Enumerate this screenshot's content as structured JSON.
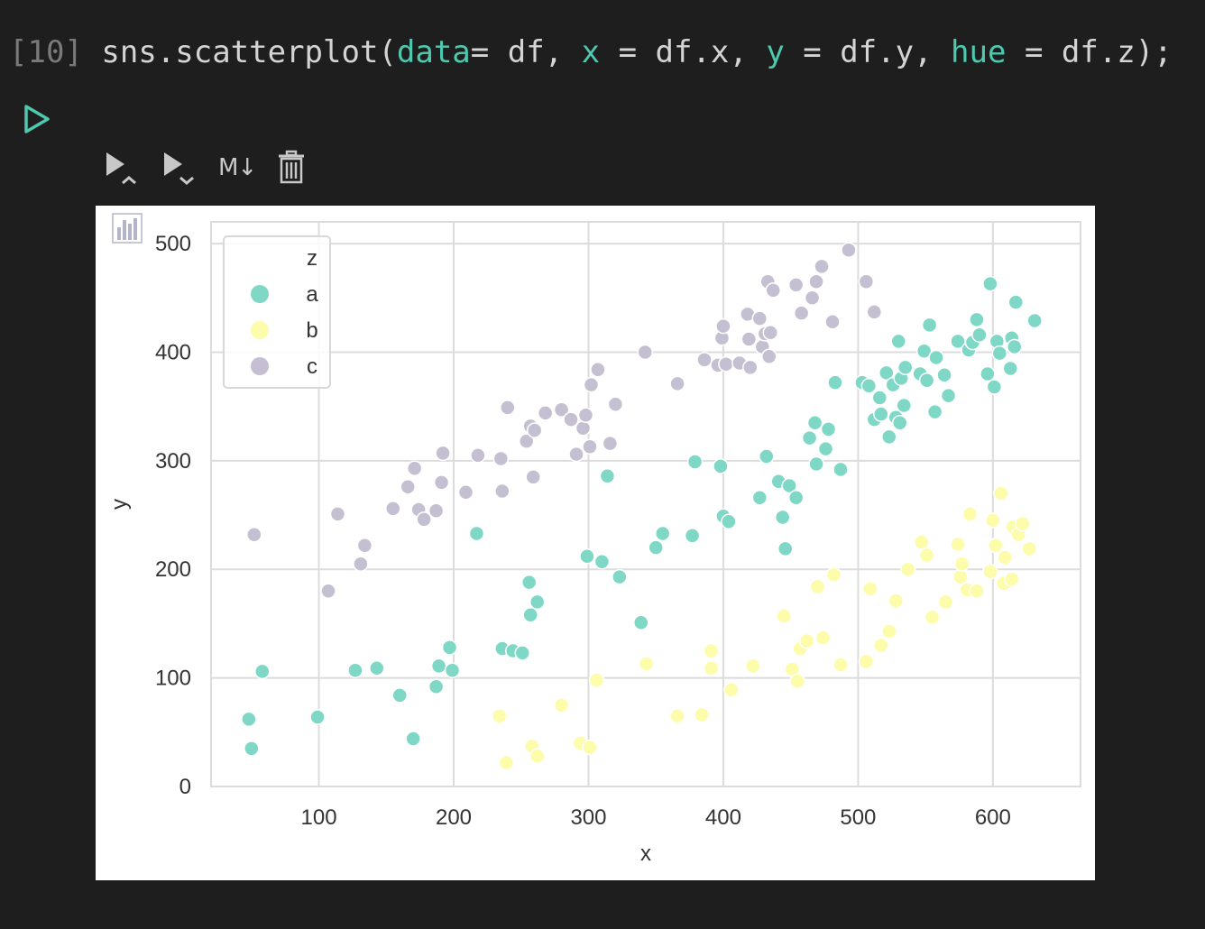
{
  "cell": {
    "prompt": "[10]",
    "code_parts": {
      "a": "sns.scatterplot(",
      "b": "data",
      "c": "= df, ",
      "d": "x",
      "e": " = df.x, ",
      "f": "y",
      "g": " = df.y, ",
      "h": "hue",
      "i": " = df.z);"
    }
  },
  "toolbar": {
    "run_above_icon": "run-above-icon",
    "run_below_icon": "run-below-icon",
    "markdown_label": "M↓",
    "delete_icon": "trash-icon"
  },
  "colors": {
    "background": "#1e1e1e",
    "keyword": "#4ec9b0",
    "a": "#7fd8c6",
    "b": "#fcfcaa",
    "c": "#c4c0d2",
    "grid": "#dcdcdc"
  },
  "chart_data": {
    "type": "scatter",
    "xlabel": "x",
    "ylabel": "y",
    "xlim": [
      20,
      665
    ],
    "ylim": [
      0,
      520
    ],
    "xticks": [
      100,
      200,
      300,
      400,
      500,
      600
    ],
    "yticks": [
      0,
      100,
      200,
      300,
      400,
      500
    ],
    "grid": true,
    "legend": {
      "title": "z",
      "placement": "top-left"
    },
    "series": [
      {
        "name": "a",
        "color": "#7fd8c6",
        "points": [
          [
            48,
            62
          ],
          [
            50,
            35
          ],
          [
            58,
            106
          ],
          [
            99,
            64
          ],
          [
            127,
            107
          ],
          [
            143,
            109
          ],
          [
            160,
            84
          ],
          [
            170,
            44
          ],
          [
            187,
            92
          ],
          [
            189,
            111
          ],
          [
            197,
            128
          ],
          [
            199,
            107
          ],
          [
            217,
            233
          ],
          [
            236,
            127
          ],
          [
            244,
            125
          ],
          [
            251,
            123
          ],
          [
            256,
            188
          ],
          [
            257,
            158
          ],
          [
            262,
            170
          ],
          [
            299,
            212
          ],
          [
            310,
            207
          ],
          [
            314,
            286
          ],
          [
            323,
            193
          ],
          [
            339,
            151
          ],
          [
            350,
            220
          ],
          [
            355,
            233
          ],
          [
            377,
            231
          ],
          [
            379,
            299
          ],
          [
            398,
            295
          ],
          [
            400,
            249
          ],
          [
            404,
            244
          ],
          [
            427,
            266
          ],
          [
            432,
            304
          ],
          [
            441,
            281
          ],
          [
            444,
            248
          ],
          [
            446,
            219
          ],
          [
            449,
            277
          ],
          [
            454,
            266
          ],
          [
            464,
            321
          ],
          [
            468,
            335
          ],
          [
            469,
            297
          ],
          [
            476,
            311
          ],
          [
            478,
            329
          ],
          [
            483,
            372
          ],
          [
            487,
            292
          ],
          [
            503,
            372
          ],
          [
            508,
            369
          ],
          [
            512,
            338
          ],
          [
            516,
            358
          ],
          [
            517,
            343
          ],
          [
            521,
            381
          ],
          [
            523,
            322
          ],
          [
            526,
            370
          ],
          [
            528,
            340
          ],
          [
            530,
            410
          ],
          [
            531,
            335
          ],
          [
            532,
            376
          ],
          [
            534,
            351
          ],
          [
            535,
            386
          ],
          [
            546,
            380
          ],
          [
            549,
            401
          ],
          [
            551,
            374
          ],
          [
            553,
            425
          ],
          [
            557,
            345
          ],
          [
            558,
            395
          ],
          [
            564,
            379
          ],
          [
            567,
            360
          ],
          [
            574,
            410
          ],
          [
            582,
            402
          ],
          [
            585,
            409
          ],
          [
            588,
            430
          ],
          [
            590,
            416
          ],
          [
            596,
            380
          ],
          [
            598,
            463
          ],
          [
            601,
            368
          ],
          [
            603,
            410
          ],
          [
            605,
            399
          ],
          [
            613,
            385
          ],
          [
            614,
            413
          ],
          [
            616,
            405
          ],
          [
            617,
            446
          ],
          [
            631,
            429
          ]
        ]
      },
      {
        "name": "b",
        "color": "#fcfcaa",
        "points": [
          [
            234,
            65
          ],
          [
            239,
            22
          ],
          [
            258,
            37
          ],
          [
            262,
            28
          ],
          [
            280,
            75
          ],
          [
            294,
            40
          ],
          [
            301,
            36
          ],
          [
            306,
            98
          ],
          [
            343,
            113
          ],
          [
            366,
            65
          ],
          [
            384,
            66
          ],
          [
            391,
            125
          ],
          [
            391,
            109
          ],
          [
            406,
            89
          ],
          [
            422,
            111
          ],
          [
            445,
            157
          ],
          [
            451,
            108
          ],
          [
            455,
            97
          ],
          [
            457,
            127
          ],
          [
            462,
            134
          ],
          [
            470,
            184
          ],
          [
            474,
            137
          ],
          [
            482,
            195
          ],
          [
            487,
            112
          ],
          [
            506,
            115
          ],
          [
            509,
            182
          ],
          [
            517,
            130
          ],
          [
            523,
            143
          ],
          [
            528,
            171
          ],
          [
            537,
            200
          ],
          [
            547,
            225
          ],
          [
            551,
            213
          ],
          [
            555,
            156
          ],
          [
            565,
            170
          ],
          [
            574,
            223
          ],
          [
            576,
            193
          ],
          [
            577,
            205
          ],
          [
            581,
            181
          ],
          [
            583,
            251
          ],
          [
            588,
            180
          ],
          [
            598,
            198
          ],
          [
            600,
            245
          ],
          [
            602,
            222
          ],
          [
            606,
            270
          ],
          [
            608,
            187
          ],
          [
            609,
            211
          ],
          [
            614,
            191
          ],
          [
            615,
            239
          ],
          [
            619,
            232
          ],
          [
            622,
            242
          ],
          [
            627,
            219
          ]
        ]
      },
      {
        "name": "c",
        "color": "#c4c0d2",
        "points": [
          [
            52,
            232
          ],
          [
            107,
            180
          ],
          [
            114,
            251
          ],
          [
            131,
            205
          ],
          [
            134,
            222
          ],
          [
            155,
            256
          ],
          [
            166,
            276
          ],
          [
            171,
            293
          ],
          [
            174,
            255
          ],
          [
            178,
            246
          ],
          [
            187,
            254
          ],
          [
            191,
            280
          ],
          [
            192,
            307
          ],
          [
            209,
            271
          ],
          [
            218,
            305
          ],
          [
            235,
            302
          ],
          [
            236,
            272
          ],
          [
            240,
            349
          ],
          [
            254,
            318
          ],
          [
            257,
            332
          ],
          [
            259,
            285
          ],
          [
            260,
            328
          ],
          [
            268,
            344
          ],
          [
            280,
            347
          ],
          [
            287,
            338
          ],
          [
            291,
            306
          ],
          [
            296,
            330
          ],
          [
            298,
            342
          ],
          [
            301,
            313
          ],
          [
            302,
            370
          ],
          [
            307,
            384
          ],
          [
            316,
            316
          ],
          [
            320,
            352
          ],
          [
            342,
            400
          ],
          [
            366,
            371
          ],
          [
            386,
            393
          ],
          [
            396,
            388
          ],
          [
            399,
            413
          ],
          [
            400,
            424
          ],
          [
            402,
            389
          ],
          [
            412,
            390
          ],
          [
            418,
            435
          ],
          [
            419,
            412
          ],
          [
            420,
            386
          ],
          [
            427,
            431
          ],
          [
            429,
            405
          ],
          [
            431,
            417
          ],
          [
            433,
            465
          ],
          [
            434,
            396
          ],
          [
            435,
            418
          ],
          [
            437,
            457
          ],
          [
            454,
            462
          ],
          [
            458,
            436
          ],
          [
            466,
            450
          ],
          [
            469,
            465
          ],
          [
            473,
            479
          ],
          [
            481,
            428
          ],
          [
            493,
            494
          ],
          [
            506,
            465
          ],
          [
            512,
            437
          ]
        ]
      }
    ]
  }
}
